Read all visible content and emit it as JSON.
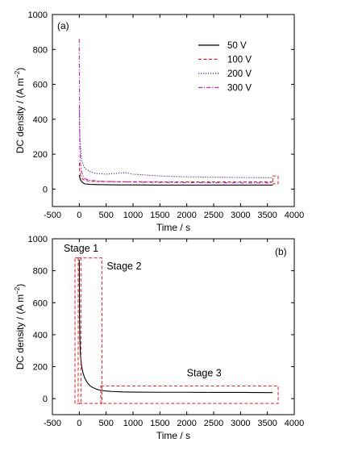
{
  "chart_data": [
    {
      "type": "line",
      "panel_label": "(a)",
      "xlabel": "Time / s",
      "ylabel_main": "DC density / (A m",
      "ylabel_exp": "−2",
      "ylabel_close": ")",
      "xlim": [
        -500,
        4000
      ],
      "ylim": [
        -100,
        1000
      ],
      "x_ticks": [
        -500,
        0,
        500,
        1000,
        1500,
        2000,
        2500,
        3000,
        3500,
        4000
      ],
      "y_ticks": [
        0,
        200,
        400,
        600,
        800,
        1000
      ],
      "legend": "top-right",
      "series": [
        {
          "name": "50 V",
          "color": "#000000",
          "dash": "solid",
          "x": [
            0,
            5,
            20,
            50,
            100,
            200,
            400,
            700,
            1000,
            1500,
            2000,
            2500,
            3000,
            3500,
            3600
          ],
          "y": [
            80,
            70,
            55,
            40,
            30,
            27,
            25,
            24,
            24,
            23,
            23,
            23,
            23,
            23,
            23
          ]
        },
        {
          "name": "100 V",
          "color": "#e8171d",
          "dash": "dashed",
          "x": [
            0,
            5,
            20,
            50,
            100,
            200,
            400,
            700,
            1000,
            1500,
            2000,
            2500,
            3000,
            3500,
            3600
          ],
          "y": [
            150,
            110,
            80,
            60,
            50,
            45,
            43,
            42,
            42,
            41,
            41,
            41,
            41,
            41,
            41
          ]
        },
        {
          "name": "200 V",
          "color": "#1f2a9e",
          "dash": "dotted",
          "x": [
            0,
            5,
            20,
            50,
            100,
            200,
            300,
            500,
            700,
            850,
            1000,
            1500,
            2000,
            2500,
            3000,
            3500,
            3600
          ],
          "y": [
            470,
            350,
            240,
            160,
            120,
            100,
            90,
            85,
            90,
            95,
            85,
            75,
            70,
            68,
            66,
            65,
            65
          ]
        },
        {
          "name": "300 V",
          "color": "#c41fc7",
          "dash": "dashdot",
          "x": [
            0,
            2,
            5,
            10,
            20,
            40,
            70,
            100,
            200,
            400,
            700,
            1000,
            1500,
            2000,
            2500,
            3000,
            3500,
            3600
          ],
          "y": [
            860,
            600,
            400,
            250,
            150,
            100,
            75,
            60,
            50,
            45,
            42,
            40,
            38,
            37,
            36,
            35,
            35,
            35
          ]
        }
      ],
      "annotations": [
        {
          "type": "dashed-box",
          "color": "#e8171d",
          "x": [
            3600,
            3700
          ],
          "y": [
            30,
            75
          ]
        }
      ]
    },
    {
      "type": "line",
      "panel_label": "(b)",
      "xlabel": "Time / s",
      "ylabel_main": "DC density / (A m",
      "ylabel_exp": "−2",
      "ylabel_close": ")",
      "xlim": [
        -500,
        4000
      ],
      "ylim": [
        -100,
        1000
      ],
      "x_ticks": [
        -500,
        0,
        500,
        1000,
        1500,
        2000,
        2500,
        3000,
        3500,
        4000
      ],
      "y_ticks": [
        0,
        200,
        400,
        600,
        800,
        1000
      ],
      "series": [
        {
          "color": "#000000",
          "dash": "solid",
          "x": [
            0,
            1,
            3,
            5,
            10,
            20,
            40,
            70,
            100,
            150,
            200,
            250,
            300,
            350,
            400,
            500,
            600,
            800,
            1000,
            1500,
            2000,
            2500,
            3000,
            3500,
            3600
          ],
          "y": [
            870,
            800,
            650,
            500,
            380,
            280,
            210,
            160,
            130,
            100,
            80,
            70,
            62,
            56,
            52,
            48,
            45,
            42,
            41,
            40,
            40,
            39,
            39,
            38,
            38
          ]
        }
      ],
      "stages": [
        {
          "label": "Stage 1",
          "x": [
            -80,
            30
          ],
          "y": [
            -30,
            880
          ]
        },
        {
          "label": "Stage 2",
          "x": [
            -20,
            420
          ],
          "y": [
            -30,
            880
          ]
        },
        {
          "label": "Stage 3",
          "x": [
            400,
            3700
          ],
          "y": [
            -30,
            80
          ]
        }
      ]
    }
  ]
}
